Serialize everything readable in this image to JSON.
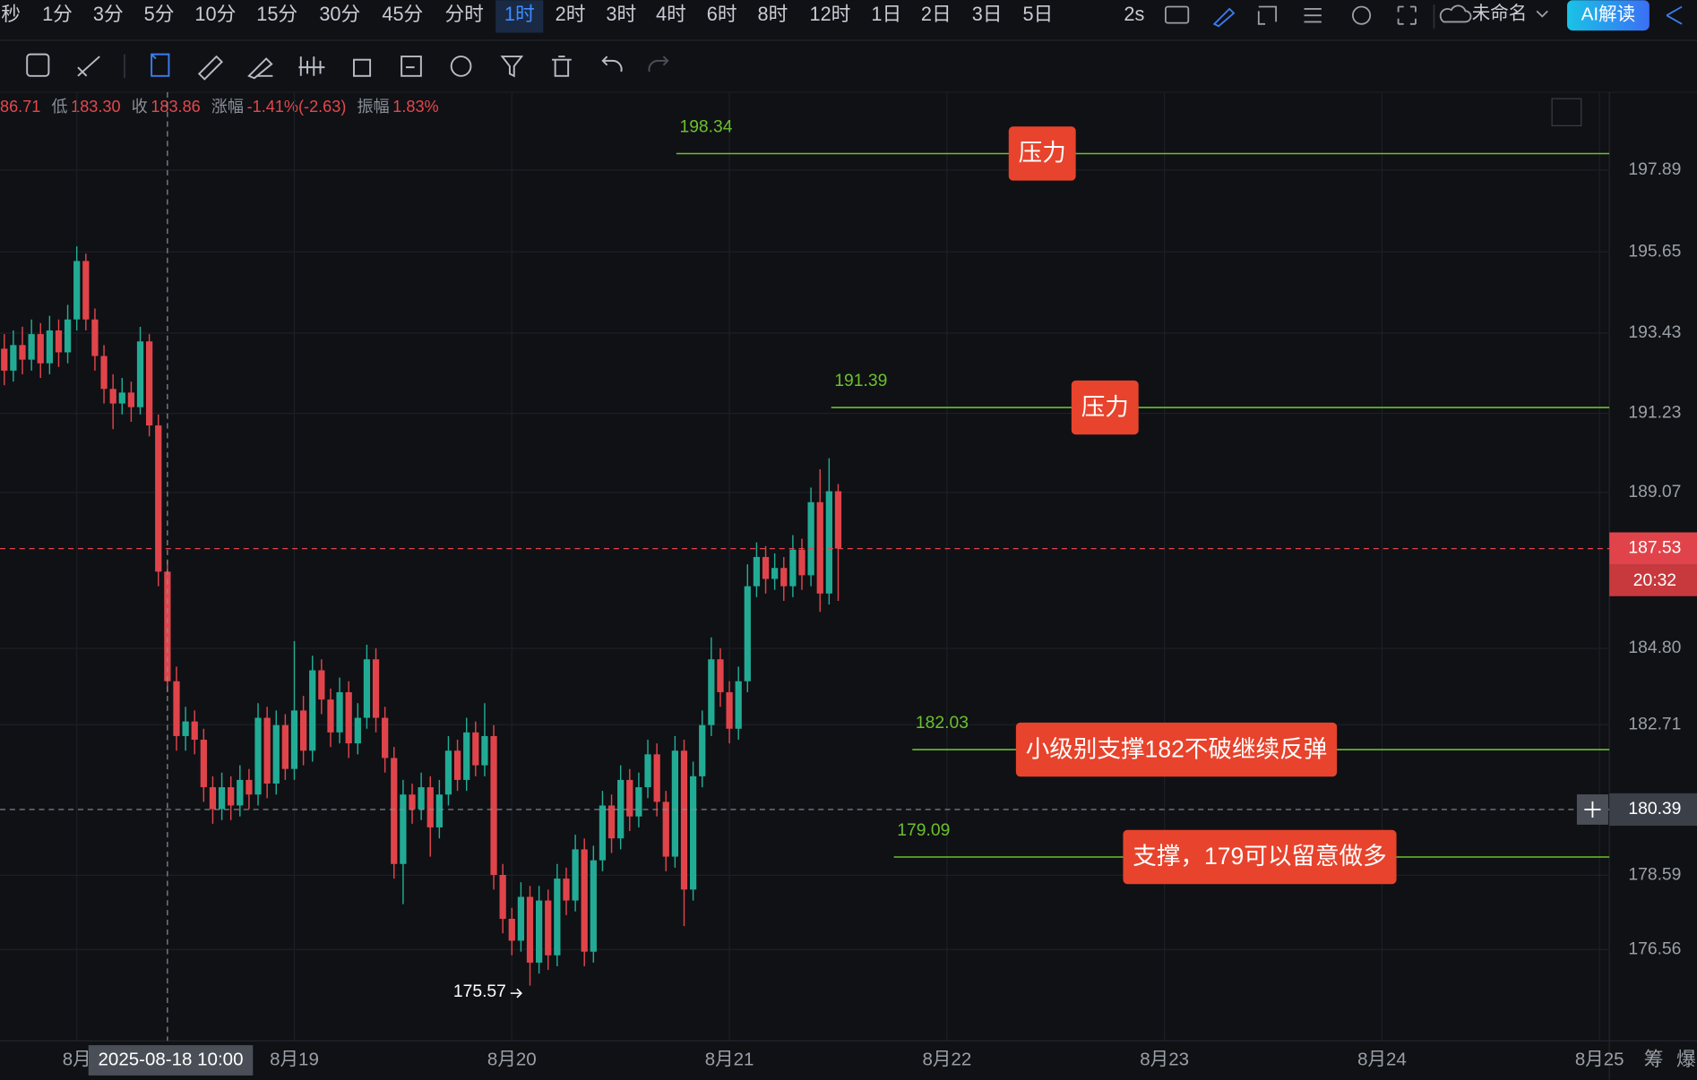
{
  "toolbar": {
    "intervals": [
      "秒",
      "1分",
      "3分",
      "5分",
      "10分",
      "15分",
      "30分",
      "45分",
      "分时",
      "1时",
      "2时",
      "3时",
      "4时",
      "6时",
      "8时",
      "12时",
      "1日",
      "2日",
      "3日",
      "5日"
    ],
    "selected": 9,
    "refresh": "2s",
    "workspace": "未命名",
    "ai_button": "AI解读"
  },
  "info_bar": [
    {
      "value": "86.71"
    },
    {
      "label": "低",
      "value": "183.30"
    },
    {
      "label": "收",
      "value": "183.86"
    },
    {
      "label": "涨幅",
      "value": "-1.41%(-2.63)"
    },
    {
      "label": "振幅",
      "value": "1.83%"
    }
  ],
  "side_tabs": [
    "筹",
    "爆"
  ],
  "chart_data": {
    "type": "candlestick",
    "colors": {
      "up": "#22ab94",
      "down": "#e0444a",
      "level": "#6cc02c"
    },
    "grid": true,
    "xlim": [
      17.647,
      25.045
    ],
    "xticks": [
      {
        "value": 18,
        "label": "8月"
      },
      {
        "value": 19,
        "label": "8月19"
      },
      {
        "value": 20,
        "label": "8月20"
      },
      {
        "value": 21,
        "label": "8月21"
      },
      {
        "value": 22,
        "label": "8月22"
      },
      {
        "value": 23,
        "label": "8月23"
      },
      {
        "value": 24,
        "label": "8月24"
      },
      {
        "value": 25,
        "label": "8月25"
      }
    ],
    "ylim": [
      174.06,
      200.02
    ],
    "yticks": [
      197.89,
      195.65,
      193.43,
      191.23,
      189.07,
      {
        "value": 184.8,
        "label": "184.80"
      },
      182.71,
      178.59,
      176.56
    ],
    "candles": [
      [
        17.6667,
        193.0,
        193.4,
        192.0,
        192.4
      ],
      [
        17.7083,
        192.4,
        193.5,
        192.1,
        193.1
      ],
      [
        17.75,
        193.1,
        193.6,
        192.3,
        192.7
      ],
      [
        17.7917,
        192.7,
        193.8,
        192.4,
        193.4
      ],
      [
        17.8333,
        193.4,
        193.7,
        192.2,
        192.6
      ],
      [
        17.875,
        192.6,
        193.9,
        192.3,
        193.5
      ],
      [
        17.9167,
        193.5,
        193.8,
        192.5,
        192.9
      ],
      [
        17.9583,
        192.9,
        194.2,
        192.6,
        193.8
      ],
      [
        18.0,
        193.8,
        195.8,
        193.5,
        195.4
      ],
      [
        18.0417,
        195.4,
        195.6,
        193.5,
        193.8
      ],
      [
        18.0833,
        193.8,
        194.1,
        192.4,
        192.8
      ],
      [
        18.125,
        192.8,
        193.1,
        191.5,
        191.9
      ],
      [
        18.1667,
        191.9,
        192.3,
        190.8,
        191.5
      ],
      [
        18.2083,
        191.5,
        192.2,
        191.2,
        191.8
      ],
      [
        18.25,
        191.8,
        192.1,
        191.0,
        191.4
      ],
      [
        18.2917,
        191.4,
        193.6,
        191.2,
        193.2
      ],
      [
        18.3333,
        193.2,
        193.4,
        190.6,
        190.9
      ],
      [
        18.375,
        190.9,
        191.2,
        186.5,
        186.9
      ],
      [
        18.4167,
        186.9,
        187.2,
        183.6,
        183.9
      ],
      [
        18.4583,
        183.9,
        184.3,
        182.0,
        182.4
      ],
      [
        18.5,
        182.4,
        183.2,
        182.0,
        182.8
      ],
      [
        18.5417,
        182.8,
        183.1,
        181.9,
        182.3
      ],
      [
        18.5833,
        182.3,
        182.6,
        180.6,
        181.0
      ],
      [
        18.625,
        181.0,
        181.3,
        180.0,
        180.4
      ],
      [
        18.6667,
        180.4,
        181.4,
        180.1,
        181.0
      ],
      [
        18.7083,
        181.0,
        181.3,
        180.1,
        180.5
      ],
      [
        18.75,
        180.5,
        181.6,
        180.2,
        181.2
      ],
      [
        18.7917,
        181.2,
        181.5,
        180.4,
        180.8
      ],
      [
        18.8333,
        180.8,
        183.3,
        180.5,
        182.9
      ],
      [
        18.875,
        182.9,
        183.2,
        180.7,
        181.1
      ],
      [
        18.9167,
        181.1,
        183.1,
        180.8,
        182.7
      ],
      [
        18.9583,
        182.7,
        183.0,
        181.2,
        181.5
      ],
      [
        19.0,
        181.5,
        185.0,
        181.2,
        183.1
      ],
      [
        19.0417,
        183.1,
        183.5,
        181.6,
        182.0
      ],
      [
        19.0833,
        182.0,
        184.6,
        181.7,
        184.2
      ],
      [
        19.125,
        184.2,
        184.5,
        183.0,
        183.4
      ],
      [
        19.1667,
        183.4,
        183.7,
        182.1,
        182.5
      ],
      [
        19.2083,
        182.5,
        184.0,
        182.2,
        183.6
      ],
      [
        19.25,
        183.6,
        183.9,
        181.8,
        182.2
      ],
      [
        19.2917,
        182.2,
        183.3,
        181.9,
        182.9
      ],
      [
        19.3333,
        182.9,
        184.9,
        182.6,
        184.5
      ],
      [
        19.375,
        184.5,
        184.8,
        182.5,
        182.9
      ],
      [
        19.4167,
        182.9,
        183.2,
        181.4,
        181.8
      ],
      [
        19.4583,
        181.8,
        182.1,
        178.5,
        178.9
      ],
      [
        19.5,
        178.9,
        181.2,
        177.8,
        180.8
      ],
      [
        19.5417,
        180.8,
        181.1,
        180.0,
        180.4
      ],
      [
        19.5833,
        180.4,
        181.4,
        180.1,
        181.0
      ],
      [
        19.625,
        181.0,
        181.3,
        179.1,
        179.9
      ],
      [
        19.6667,
        179.9,
        181.2,
        179.6,
        180.8
      ],
      [
        19.7083,
        180.8,
        182.4,
        180.5,
        182.0
      ],
      [
        19.75,
        182.0,
        182.3,
        180.9,
        181.2
      ],
      [
        19.7917,
        181.2,
        182.9,
        180.9,
        182.5
      ],
      [
        19.8333,
        182.5,
        182.8,
        181.3,
        181.6
      ],
      [
        19.875,
        181.6,
        183.3,
        181.3,
        182.4
      ],
      [
        19.9167,
        182.4,
        182.7,
        178.2,
        178.6
      ],
      [
        19.9583,
        178.6,
        178.9,
        177.0,
        177.4
      ],
      [
        20.0,
        177.4,
        177.7,
        176.4,
        176.8
      ],
      [
        20.0417,
        176.8,
        178.4,
        176.5,
        178.0
      ],
      [
        20.0833,
        178.0,
        178.3,
        175.57,
        176.2
      ],
      [
        20.125,
        176.2,
        178.3,
        175.9,
        177.9
      ],
      [
        20.1667,
        177.9,
        178.2,
        176.0,
        176.4
      ],
      [
        20.2083,
        176.4,
        178.9,
        176.1,
        178.5
      ],
      [
        20.25,
        178.5,
        178.8,
        177.5,
        177.9
      ],
      [
        20.2917,
        177.9,
        179.7,
        177.6,
        179.3
      ],
      [
        20.3333,
        179.3,
        179.6,
        176.1,
        176.5
      ],
      [
        20.375,
        176.5,
        179.4,
        176.2,
        179.0
      ],
      [
        20.4167,
        179.0,
        180.9,
        178.7,
        180.5
      ],
      [
        20.4583,
        180.5,
        180.8,
        179.2,
        179.6
      ],
      [
        20.5,
        179.6,
        181.6,
        179.3,
        181.2
      ],
      [
        20.5417,
        181.2,
        181.5,
        179.8,
        180.2
      ],
      [
        20.5833,
        180.2,
        181.4,
        179.9,
        181.0
      ],
      [
        20.625,
        181.0,
        182.3,
        180.7,
        181.9
      ],
      [
        20.6667,
        181.9,
        182.2,
        180.2,
        180.6
      ],
      [
        20.7083,
        180.6,
        180.9,
        178.7,
        179.1
      ],
      [
        20.75,
        179.1,
        182.4,
        178.8,
        182.0
      ],
      [
        20.7917,
        182.0,
        182.3,
        177.2,
        178.2
      ],
      [
        20.8333,
        178.2,
        181.7,
        177.9,
        181.3
      ],
      [
        20.875,
        181.3,
        183.1,
        181.0,
        182.7
      ],
      [
        20.9167,
        182.7,
        185.1,
        182.4,
        184.5
      ],
      [
        20.9583,
        184.5,
        184.8,
        183.2,
        183.6
      ],
      [
        21.0,
        183.6,
        183.9,
        182.2,
        182.6
      ],
      [
        21.0417,
        182.6,
        184.3,
        182.3,
        183.9
      ],
      [
        21.0833,
        183.9,
        187.1,
        183.6,
        186.5
      ],
      [
        21.125,
        186.5,
        187.7,
        186.2,
        187.3
      ],
      [
        21.1667,
        187.3,
        187.6,
        186.3,
        186.7
      ],
      [
        21.2083,
        186.7,
        187.4,
        186.4,
        187.0
      ],
      [
        21.25,
        187.0,
        187.3,
        186.1,
        186.5
      ],
      [
        21.2917,
        186.5,
        187.9,
        186.2,
        187.5
      ],
      [
        21.3333,
        187.5,
        187.8,
        186.4,
        186.8
      ],
      [
        21.375,
        186.8,
        189.2,
        186.5,
        188.8
      ],
      [
        21.4167,
        188.8,
        189.7,
        185.8,
        186.3
      ],
      [
        21.4583,
        186.3,
        190.0,
        186.0,
        189.1
      ],
      [
        21.5,
        189.1,
        189.3,
        186.1,
        187.53
      ]
    ],
    "levels": [
      {
        "value": 198.34,
        "x_start": 20.756,
        "label": "压力"
      },
      {
        "value": 191.39,
        "x_start": 21.468,
        "label": "压力"
      },
      {
        "value": 182.03,
        "x_start": 21.841,
        "label": "小级别支撑182不破继续反弹"
      },
      {
        "value": 179.09,
        "x_start": 21.756,
        "label": "支撑，179可以留意做多"
      }
    ],
    "last_price": {
      "value": 187.53,
      "countdown": "20:32",
      "color": "#e0444a"
    },
    "crosshair": {
      "x": 18.4167,
      "x_label": "2025-08-18 10:00",
      "y": 180.39
    },
    "low_marker": {
      "x": 20.0833,
      "value": 175.57
    }
  }
}
